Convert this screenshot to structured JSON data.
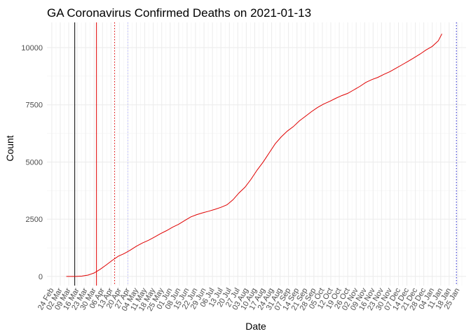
{
  "chart_data": {
    "type": "line",
    "title": "GA Coronavirus Confirmed Deaths on 2021-01-13",
    "xlabel": "Date",
    "ylabel": "Count",
    "ylim": [
      -400,
      11100
    ],
    "y_ticks": [
      0,
      2500,
      5000,
      7500,
      10000
    ],
    "y_tick_labels": [
      "0",
      "2500",
      "5000",
      "7500",
      "10000"
    ],
    "x_range_days": [
      -4,
      343
    ],
    "x_ticks": [
      {
        "day": 0,
        "label": "24 Feb"
      },
      {
        "day": 7,
        "label": "02 Mar"
      },
      {
        "day": 14,
        "label": "09 Mar"
      },
      {
        "day": 21,
        "label": "16 Mar"
      },
      {
        "day": 28,
        "label": "23 Mar"
      },
      {
        "day": 35,
        "label": "30 Mar"
      },
      {
        "day": 42,
        "label": "06 Apr"
      },
      {
        "day": 49,
        "label": "13 Apr"
      },
      {
        "day": 56,
        "label": "20 Apr"
      },
      {
        "day": 63,
        "label": "27 Apr"
      },
      {
        "day": 70,
        "label": "04 May"
      },
      {
        "day": 77,
        "label": "11 May"
      },
      {
        "day": 84,
        "label": "18 May"
      },
      {
        "day": 91,
        "label": "25 May"
      },
      {
        "day": 98,
        "label": "01 Jun"
      },
      {
        "day": 105,
        "label": "08 Jun"
      },
      {
        "day": 112,
        "label": "15 Jun"
      },
      {
        "day": 119,
        "label": "22 Jun"
      },
      {
        "day": 126,
        "label": "29 Jun"
      },
      {
        "day": 133,
        "label": "06 Jul"
      },
      {
        "day": 140,
        "label": "13 Jul"
      },
      {
        "day": 147,
        "label": "20 Jul"
      },
      {
        "day": 154,
        "label": "27 Jul"
      },
      {
        "day": 161,
        "label": "03 Aug"
      },
      {
        "day": 168,
        "label": "10 Aug"
      },
      {
        "day": 175,
        "label": "17 Aug"
      },
      {
        "day": 182,
        "label": "24 Aug"
      },
      {
        "day": 189,
        "label": "31 Aug"
      },
      {
        "day": 196,
        "label": "07 Sep"
      },
      {
        "day": 203,
        "label": "14 Sep"
      },
      {
        "day": 210,
        "label": "21 Sep"
      },
      {
        "day": 217,
        "label": "28 Sep"
      },
      {
        "day": 224,
        "label": "05 Oct"
      },
      {
        "day": 231,
        "label": "12 Oct"
      },
      {
        "day": 238,
        "label": "19 Oct"
      },
      {
        "day": 245,
        "label": "26 Oct"
      },
      {
        "day": 252,
        "label": "02 Nov"
      },
      {
        "day": 259,
        "label": "09 Nov"
      },
      {
        "day": 266,
        "label": "16 Nov"
      },
      {
        "day": 273,
        "label": "23 Nov"
      },
      {
        "day": 280,
        "label": "30 Nov"
      },
      {
        "day": 287,
        "label": "07 Dec"
      },
      {
        "day": 294,
        "label": "14 Dec"
      },
      {
        "day": 301,
        "label": "21 Dec"
      },
      {
        "day": 308,
        "label": "28 Dec"
      },
      {
        "day": 315,
        "label": "04 Jan"
      },
      {
        "day": 322,
        "label": "11 Jan"
      },
      {
        "day": 329,
        "label": "18 Jan"
      },
      {
        "day": 336,
        "label": "25 Jan"
      }
    ],
    "reference_lines": [
      {
        "day": 19,
        "color": "#000000",
        "style": "solid"
      },
      {
        "day": 37,
        "color": "#e00000",
        "style": "solid"
      },
      {
        "day": 52,
        "color": "#e00000",
        "style": "dotted"
      },
      {
        "day": 63,
        "color": "#b9b9ff",
        "style": "dotted"
      },
      {
        "day": 335,
        "color": "#1a1acc",
        "style": "dotted"
      }
    ],
    "series": [
      {
        "name": "Confirmed Deaths",
        "color": "#e00000",
        "x": [
          12,
          20,
          25,
          30,
          35,
          40,
          45,
          50,
          55,
          60,
          65,
          70,
          75,
          80,
          85,
          90,
          95,
          100,
          105,
          110,
          115,
          120,
          125,
          130,
          135,
          140,
          145,
          150,
          155,
          160,
          165,
          170,
          175,
          180,
          185,
          190,
          195,
          200,
          205,
          210,
          215,
          220,
          225,
          230,
          235,
          240,
          245,
          250,
          255,
          260,
          265,
          270,
          275,
          280,
          285,
          290,
          295,
          300,
          305,
          310,
          315,
          320,
          323
        ],
        "values": [
          0,
          0,
          15,
          60,
          150,
          310,
          500,
          700,
          880,
          1000,
          1150,
          1320,
          1460,
          1580,
          1720,
          1870,
          2000,
          2150,
          2280,
          2440,
          2600,
          2700,
          2780,
          2850,
          2930,
          3020,
          3130,
          3350,
          3650,
          3900,
          4250,
          4650,
          5000,
          5400,
          5800,
          6100,
          6350,
          6550,
          6800,
          7000,
          7200,
          7380,
          7530,
          7650,
          7780,
          7900,
          8000,
          8150,
          8300,
          8480,
          8600,
          8700,
          8830,
          8950,
          9100,
          9250,
          9400,
          9560,
          9720,
          9900,
          10050,
          10300,
          10600
        ]
      }
    ]
  }
}
